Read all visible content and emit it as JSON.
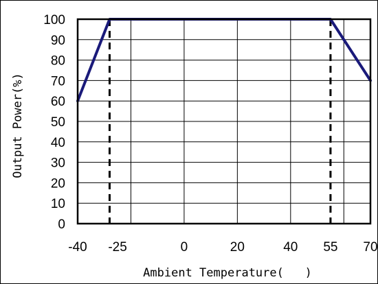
{
  "chart_data": {
    "type": "line",
    "title": "",
    "xlabel": "Ambient Temperature(   )",
    "ylabel": "Output Power(%)",
    "xlim": [
      -40,
      70
    ],
    "ylim": [
      0,
      100
    ],
    "x_ticks": [
      -40,
      -25,
      0,
      20,
      40,
      55,
      70
    ],
    "x_tick_labels": [
      "-40",
      "-25",
      "0",
      "20",
      "40",
      "55",
      "70"
    ],
    "y_ticks": [
      0,
      10,
      20,
      30,
      40,
      50,
      60,
      70,
      80,
      90,
      100
    ],
    "y_tick_labels": [
      "0",
      "10",
      "20",
      "30",
      "40",
      "50",
      "60",
      "70",
      "80",
      "90",
      "100"
    ],
    "x_gridlines": [
      -20,
      0,
      20,
      40,
      60
    ],
    "grid": true,
    "series": [
      {
        "x": [
          -40,
          -28,
          55,
          70
        ],
        "y": [
          60,
          100,
          100,
          70
        ],
        "color": "#1a1a7a"
      }
    ],
    "reference_lines": [
      {
        "x": -28,
        "style": "dashed",
        "color": "#000000"
      },
      {
        "x": 55,
        "style": "dashed",
        "color": "#000000"
      }
    ]
  }
}
